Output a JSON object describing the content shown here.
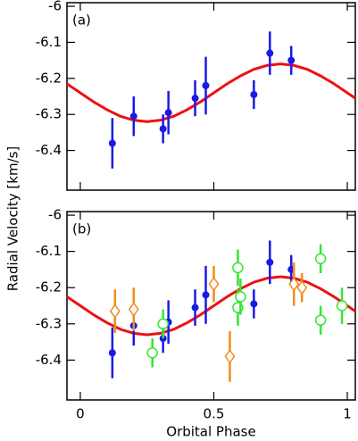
{
  "chart_data": [
    {
      "type": "scatter",
      "panel_label": "(a)",
      "ylabel": "Radial Velocity [km/s]",
      "xlim": [
        -0.05,
        1.03
      ],
      "ylim": [
        -6.51,
        -5.99
      ],
      "yticks": [
        -6,
        -6.1,
        -6.2,
        -6.3,
        -6.4
      ],
      "curve": {
        "color": "#ee1111",
        "x": [
          -0.05,
          0,
          0.05,
          0.1,
          0.15,
          0.2,
          0.25,
          0.3,
          0.35,
          0.4,
          0.45,
          0.5,
          0.55,
          0.6,
          0.65,
          0.7,
          0.75,
          0.8,
          0.85,
          0.9,
          0.95,
          1,
          1.03
        ],
        "values": [
          -6.215,
          -6.24,
          -6.265,
          -6.287,
          -6.305,
          -6.316,
          -6.32,
          -6.316,
          -6.305,
          -6.287,
          -6.265,
          -6.24,
          -6.215,
          -6.193,
          -6.175,
          -6.164,
          -6.16,
          -6.164,
          -6.175,
          -6.193,
          -6.215,
          -6.24,
          -6.255
        ]
      },
      "series": [
        {
          "color": "#1a1ae6",
          "marker": "filled-circle",
          "x": [
            0.12,
            0.2,
            0.31,
            0.33,
            0.43,
            0.47,
            0.65,
            0.71,
            0.79
          ],
          "values": [
            -6.38,
            -6.305,
            -6.34,
            -6.295,
            -6.255,
            -6.22,
            -6.245,
            -6.13,
            -6.15
          ],
          "errors": [
            0.07,
            0.055,
            0.04,
            0.06,
            0.05,
            0.08,
            0.04,
            0.06,
            0.04
          ]
        }
      ]
    },
    {
      "type": "scatter",
      "panel_label": "(b)",
      "xlabel": "Orbital Phase",
      "xlim": [
        -0.05,
        1.03
      ],
      "ylim": [
        -6.51,
        -5.99
      ],
      "yticks": [
        -6,
        -6.1,
        -6.2,
        -6.3,
        -6.4
      ],
      "xticks": [
        0,
        0.5,
        1
      ],
      "curve": {
        "color": "#ee1111",
        "x": [
          -0.05,
          0,
          0.05,
          0.1,
          0.15,
          0.2,
          0.25,
          0.3,
          0.35,
          0.4,
          0.45,
          0.5,
          0.55,
          0.6,
          0.65,
          0.7,
          0.75,
          0.8,
          0.85,
          0.9,
          0.95,
          1,
          1.03
        ],
        "values": [
          -6.225,
          -6.25,
          -6.275,
          -6.297,
          -6.315,
          -6.326,
          -6.33,
          -6.326,
          -6.315,
          -6.297,
          -6.275,
          -6.25,
          -6.225,
          -6.203,
          -6.185,
          -6.174,
          -6.17,
          -6.174,
          -6.185,
          -6.203,
          -6.225,
          -6.25,
          -6.265
        ]
      },
      "series": [
        {
          "color": "#1a1ae6",
          "marker": "filled-circle",
          "x": [
            0.12,
            0.2,
            0.31,
            0.33,
            0.43,
            0.47,
            0.65,
            0.71,
            0.79
          ],
          "values": [
            -6.38,
            -6.305,
            -6.34,
            -6.295,
            -6.255,
            -6.22,
            -6.245,
            -6.13,
            -6.15
          ],
          "errors": [
            0.07,
            0.055,
            0.04,
            0.06,
            0.05,
            0.08,
            0.04,
            0.06,
            0.04
          ]
        },
        {
          "color": "#f08c1e",
          "marker": "open-diamond",
          "x": [
            0.13,
            0.2,
            0.5,
            0.56,
            0.8,
            0.83
          ],
          "values": [
            -6.265,
            -6.26,
            -6.19,
            -6.39,
            -6.19,
            -6.2
          ],
          "errors": [
            0.06,
            0.06,
            0.05,
            0.07,
            0.06,
            0.04
          ]
        },
        {
          "color": "#33e633",
          "marker": "open-circle",
          "x": [
            0.27,
            0.31,
            0.59,
            0.59,
            0.6,
            0.9,
            0.9,
            0.98
          ],
          "values": [
            -6.38,
            -6.3,
            -6.145,
            -6.255,
            -6.225,
            -6.12,
            -6.29,
            -6.25
          ],
          "errors": [
            0.04,
            0.04,
            0.05,
            0.05,
            0.05,
            0.04,
            0.04,
            0.05
          ]
        }
      ]
    }
  ]
}
